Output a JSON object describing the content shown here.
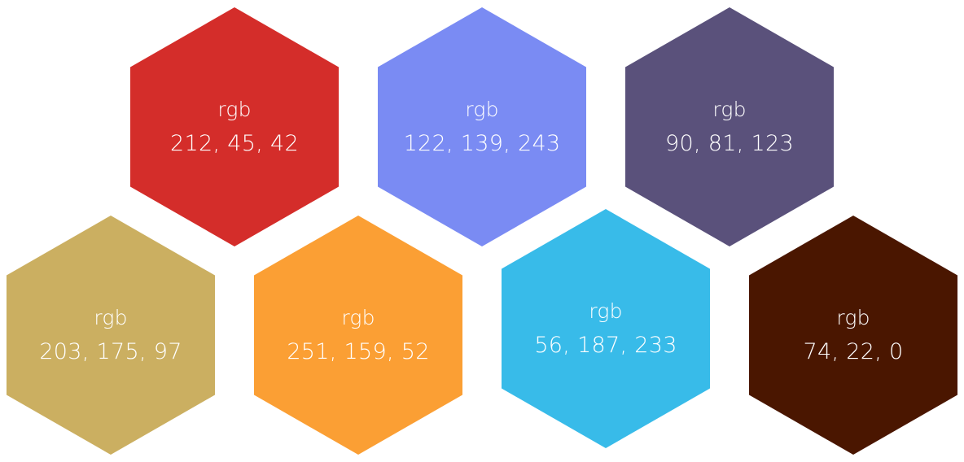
{
  "swatches": [
    {
      "label": "rgb",
      "value": "212, 45, 42",
      "color": "#d42d2a"
    },
    {
      "label": "rgb",
      "value": "122, 139, 243",
      "color": "#7a8bf3"
    },
    {
      "label": "rgb",
      "value": "90, 81, 123",
      "color": "#5a517b"
    },
    {
      "label": "rgb",
      "value": "203, 175, 97",
      "color": "#cbaf61"
    },
    {
      "label": "rgb",
      "value": "251, 159, 52",
      "color": "#fb9f34"
    },
    {
      "label": "rgb",
      "value": "56, 187, 233",
      "color": "#38bbe9"
    },
    {
      "label": "rgb",
      "value": "74, 22, 0",
      "color": "#4a1600"
    }
  ]
}
